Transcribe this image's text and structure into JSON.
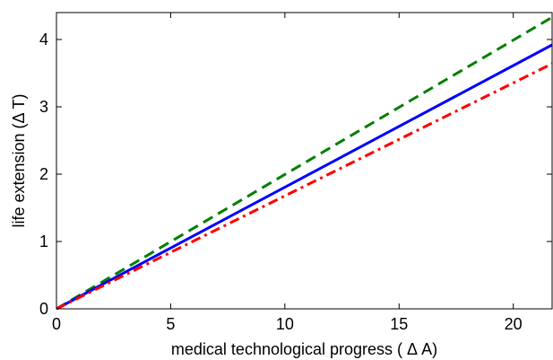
{
  "chart_data": {
    "type": "line",
    "title": "",
    "xlabel": "medical technological progress ( Δ A)",
    "ylabel": "life extension (Δ T)",
    "xlim": [
      0,
      21.7
    ],
    "ylim": [
      0,
      4.4
    ],
    "xticks": [
      0,
      5,
      10,
      15,
      20
    ],
    "yticks": [
      0,
      1,
      2,
      3,
      4
    ],
    "grid": false,
    "legend": "none",
    "series": [
      {
        "style": "dashed",
        "color": "#007f00",
        "x": [
          0,
          21.7
        ],
        "y": [
          0,
          4.33
        ]
      },
      {
        "style": "solid",
        "color": "#0000ff",
        "x": [
          0,
          21.7
        ],
        "y": [
          0,
          3.92
        ]
      },
      {
        "style": "dash-dot",
        "color": "#ff0000",
        "x": [
          0,
          21.7
        ],
        "y": [
          0,
          3.64
        ]
      }
    ]
  }
}
